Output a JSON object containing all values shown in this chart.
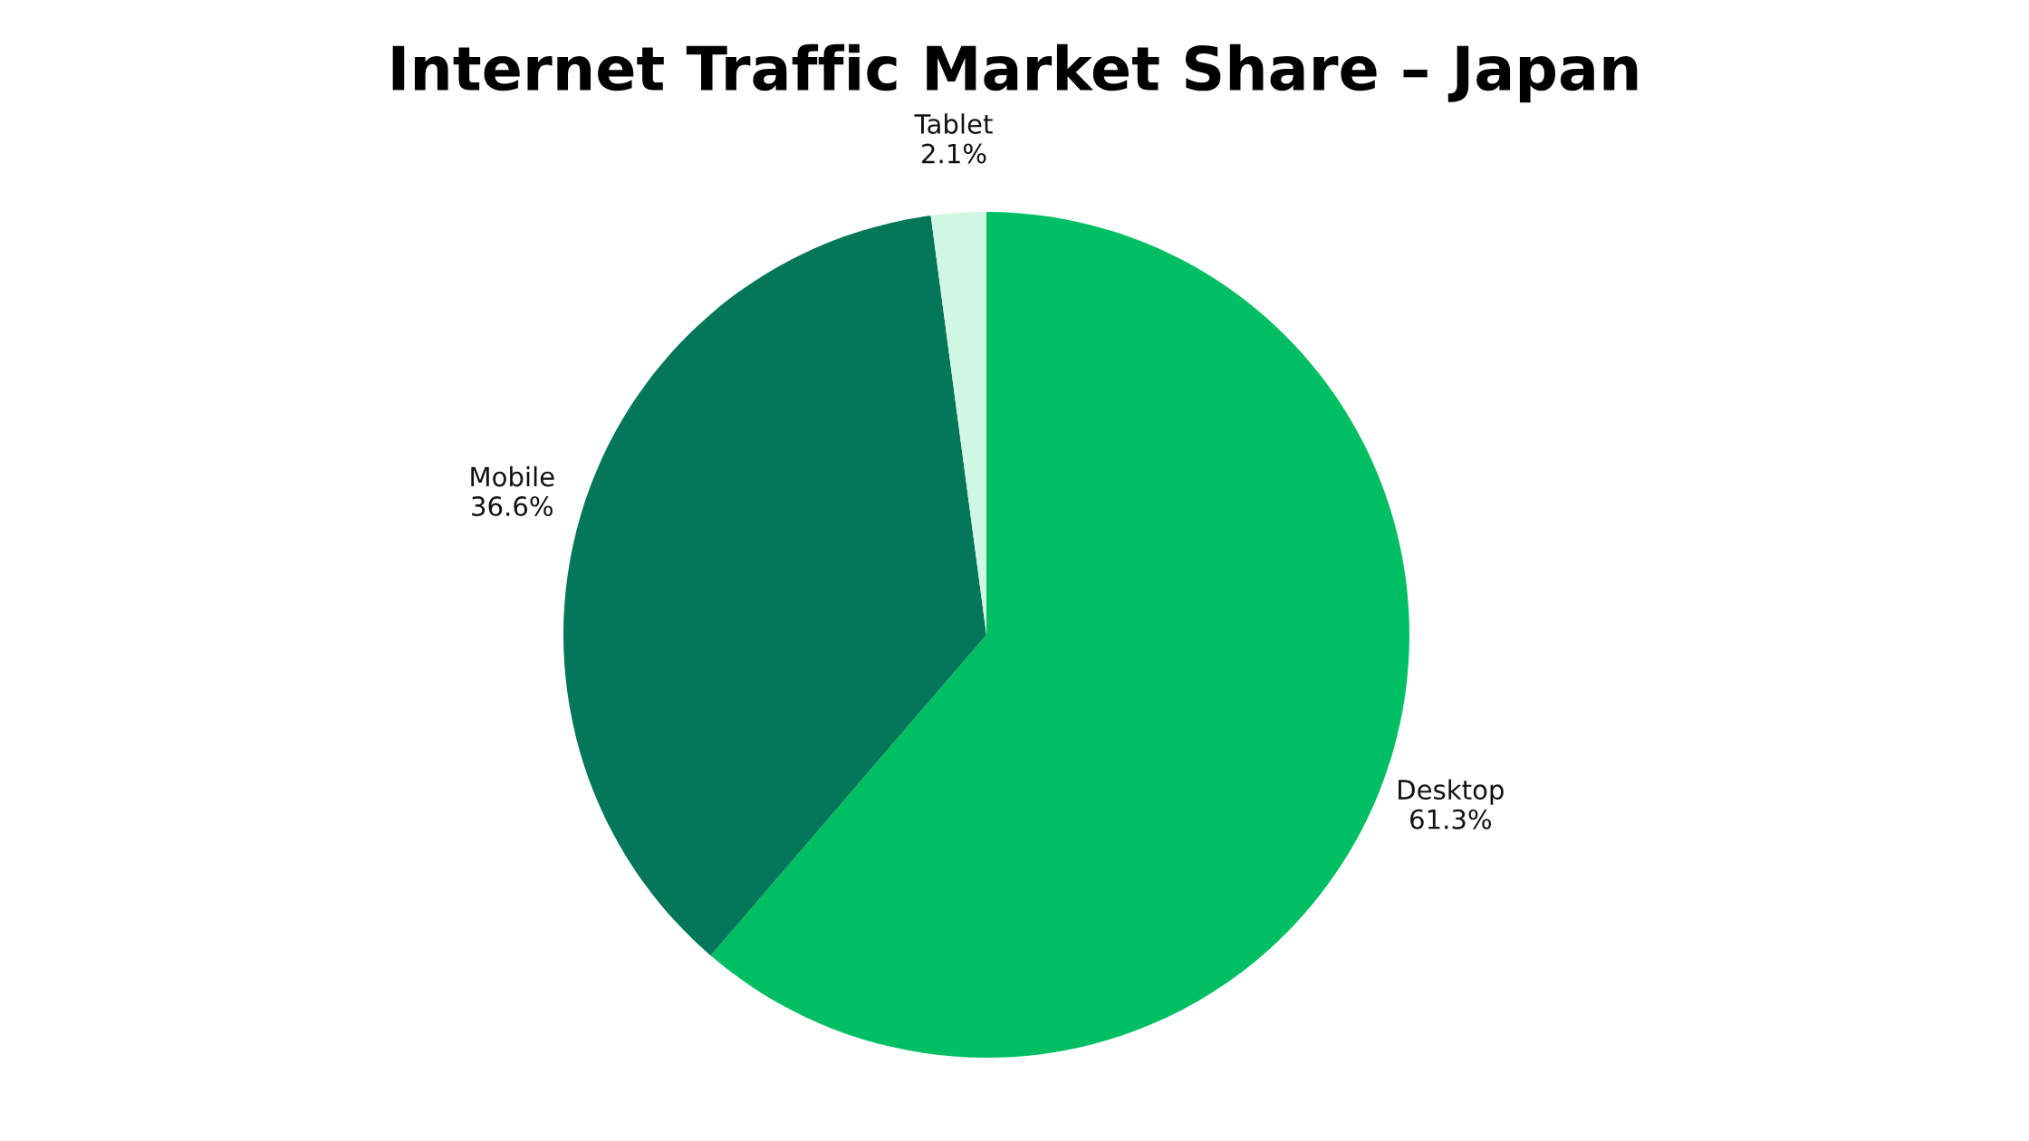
{
  "chart_data": {
    "type": "pie",
    "title": "Internet Traffic Market Share – Japan",
    "categories": [
      "Desktop",
      "Mobile",
      "Tablet"
    ],
    "values": [
      61.3,
      36.6,
      2.1
    ],
    "value_labels": [
      "61.3%",
      "36.6%",
      "2.1%"
    ],
    "colors": [
      "#00bf63",
      "#037758",
      "#cff7e3"
    ]
  }
}
